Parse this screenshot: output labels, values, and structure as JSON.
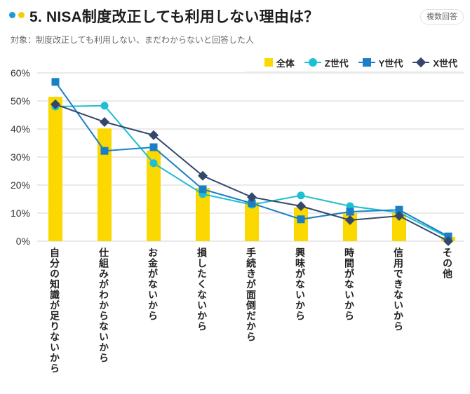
{
  "header": {
    "title": "5. NISA制度改正しても利用しない理由は？",
    "badge": "複数回答",
    "subtitle": "対象：制度改正しても利用しない、まだわからないと回答した人",
    "dot_colors": [
      "#1a9ad6",
      "#f5d000"
    ]
  },
  "chart_data": {
    "type": "bar",
    "title": "5. NISA制度改正しても利用しない理由は？",
    "subtitle": "対象：制度改正しても利用しない、まだわからないと回答した人",
    "xlabel": "",
    "ylabel": "",
    "ylim": [
      0,
      60
    ],
    "yticks": [
      0,
      10,
      20,
      30,
      40,
      50,
      60
    ],
    "ytick_labels": [
      "0%",
      "10%",
      "20%",
      "30%",
      "40%",
      "50%",
      "60%"
    ],
    "grid": true,
    "legend_position": "top-right",
    "categories": [
      "自分の知識が足りないから",
      "仕組みがわからないから",
      "お金がないから",
      "損したくないから",
      "手続きが面倒だから",
      "興味がないから",
      "時間がないから",
      "信用できないから",
      "その他"
    ],
    "series": [
      {
        "name": "全体",
        "kind": "bar",
        "color": "#fad800",
        "values": [
          51.5,
          40.2,
          32.3,
          19.0,
          14.0,
          12.0,
          10.0,
          10.0,
          1.5
        ]
      },
      {
        "name": "Z世代",
        "kind": "line",
        "marker": "circle",
        "color": "#1fbfd3",
        "values": [
          48.0,
          48.3,
          27.8,
          16.8,
          13.0,
          16.3,
          12.5,
          10.2,
          1.3
        ]
      },
      {
        "name": "Y世代",
        "kind": "line",
        "marker": "square",
        "color": "#1a7fc4",
        "values": [
          56.8,
          32.2,
          33.5,
          18.5,
          13.5,
          7.8,
          10.5,
          11.2,
          1.7
        ]
      },
      {
        "name": "X世代",
        "kind": "line",
        "marker": "diamond",
        "color": "#35486b",
        "values": [
          48.8,
          42.5,
          37.8,
          23.3,
          15.7,
          12.5,
          7.5,
          9.0,
          0.0
        ]
      }
    ]
  }
}
